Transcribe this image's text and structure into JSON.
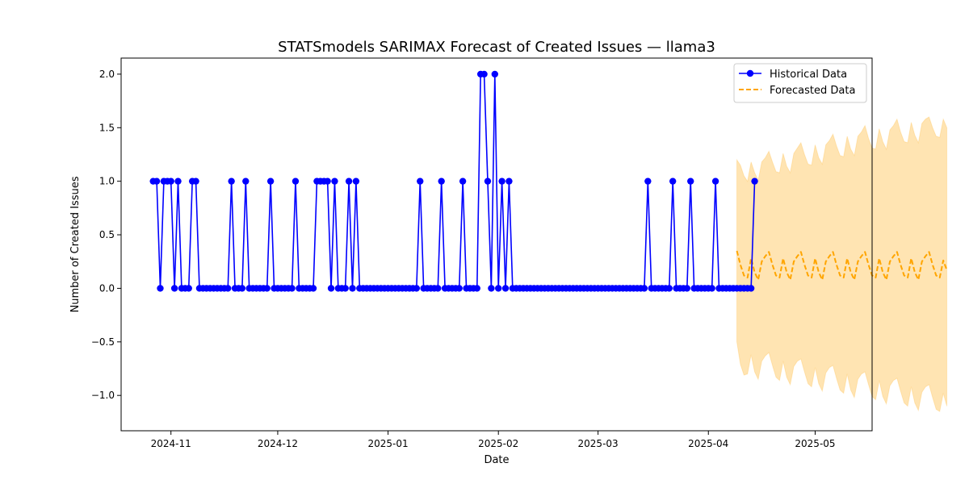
{
  "chart_data": {
    "type": "line",
    "title": "STATSmodels SARIMAX Forecast of Created Issues — llama3",
    "xlabel": "Date",
    "ylabel": "Number of Created Issues",
    "xlim": [
      "2024-10-18",
      "2025-05-17"
    ],
    "ylim": [
      -1.33,
      2.15
    ],
    "yticks": [
      -1.0,
      -0.5,
      0.0,
      0.5,
      1.0,
      1.5,
      2.0
    ],
    "ytick_labels": [
      "−1.0",
      "−0.5",
      "0.0",
      "0.5",
      "1.0",
      "1.5",
      "2.0"
    ],
    "xticks": [
      "2024-11-01",
      "2024-12-01",
      "2025-01-01",
      "2025-02-01",
      "2025-03-01",
      "2025-04-01",
      "2025-05-01"
    ],
    "xtick_labels": [
      "2024-11",
      "2024-12",
      "2025-01",
      "2025-02",
      "2025-03",
      "2025-04",
      "2025-05"
    ],
    "grid": false,
    "legend_position": "top-right",
    "series": [
      {
        "name": "Historical Data",
        "style": "line-with-markers",
        "color": "#0000ff",
        "start_date": "2024-10-27",
        "values": [
          1,
          1,
          0,
          1,
          1,
          1,
          0,
          1,
          0,
          0,
          0,
          1,
          1,
          0,
          0,
          0,
          0,
          0,
          0,
          0,
          0,
          0,
          1,
          0,
          0,
          0,
          1,
          0,
          0,
          0,
          0,
          0,
          0,
          1,
          0,
          0,
          0,
          0,
          0,
          0,
          1,
          0,
          0,
          0,
          0,
          0,
          1,
          1,
          1,
          1,
          0,
          1,
          0,
          0,
          0,
          1,
          0,
          1,
          0,
          0,
          0,
          0,
          0,
          0,
          0,
          0,
          0,
          0,
          0,
          0,
          0,
          0,
          0,
          0,
          0,
          1,
          0,
          0,
          0,
          0,
          0,
          1,
          0,
          0,
          0,
          0,
          0,
          1,
          0,
          0,
          0,
          0,
          2,
          2,
          1,
          0,
          2,
          0,
          1,
          0,
          1,
          0,
          0,
          0,
          0,
          0,
          0,
          0,
          0,
          0,
          0,
          0,
          0,
          0,
          0,
          0,
          0,
          0,
          0,
          0,
          0,
          0,
          0,
          0,
          0,
          0,
          0,
          0,
          0,
          0,
          0,
          0,
          0,
          0,
          0,
          0,
          0,
          0,
          0,
          1,
          0,
          0,
          0,
          0,
          0,
          0,
          1,
          0,
          0,
          0,
          0,
          1,
          0,
          0,
          0,
          0,
          0,
          0,
          1,
          0,
          0,
          0,
          0,
          0,
          0,
          0,
          0,
          0,
          0,
          1
        ]
      },
      {
        "name": "Forecasted Data",
        "style": "dashed",
        "color": "#ffa500",
        "start_date": "2025-04-09",
        "values": [
          0.35,
          0.22,
          0.12,
          0.1,
          0.28,
          0.15,
          0.08,
          0.25,
          0.3,
          0.34,
          0.22,
          0.12,
          0.1,
          0.28,
          0.15,
          0.08,
          0.25,
          0.3,
          0.34,
          0.22,
          0.12,
          0.1,
          0.28,
          0.15,
          0.08,
          0.25,
          0.3,
          0.34,
          0.22,
          0.12,
          0.1,
          0.28,
          0.15,
          0.08,
          0.25,
          0.3,
          0.34,
          0.22,
          0.12,
          0.1,
          0.28,
          0.15,
          0.08,
          0.25,
          0.3,
          0.34,
          0.22,
          0.12,
          0.1,
          0.28,
          0.15,
          0.08,
          0.25,
          0.3,
          0.34,
          0.22,
          0.12,
          0.1,
          0.26,
          0.17
        ]
      }
    ],
    "confidence_band": {
      "color": "#ffa500",
      "opacity": 0.3,
      "start_date": "2025-04-09",
      "upper": [
        1.2,
        1.15,
        1.05,
        1.0,
        1.18,
        1.08,
        1.01,
        1.18,
        1.22,
        1.28,
        1.18,
        1.09,
        1.08,
        1.26,
        1.14,
        1.08,
        1.26,
        1.31,
        1.36,
        1.25,
        1.16,
        1.15,
        1.34,
        1.22,
        1.16,
        1.34,
        1.38,
        1.44,
        1.33,
        1.24,
        1.23,
        1.42,
        1.3,
        1.24,
        1.42,
        1.46,
        1.52,
        1.4,
        1.31,
        1.3,
        1.49,
        1.37,
        1.3,
        1.48,
        1.52,
        1.58,
        1.46,
        1.37,
        1.36,
        1.55,
        1.43,
        1.36,
        1.54,
        1.58,
        1.6,
        1.5,
        1.42,
        1.41,
        1.58,
        1.5
      ],
      "lower": [
        -0.5,
        -0.71,
        -0.81,
        -0.8,
        -0.62,
        -0.78,
        -0.85,
        -0.68,
        -0.63,
        -0.6,
        -0.72,
        -0.83,
        -0.86,
        -0.68,
        -0.83,
        -0.9,
        -0.73,
        -0.68,
        -0.66,
        -0.78,
        -0.89,
        -0.92,
        -0.74,
        -0.89,
        -0.96,
        -0.79,
        -0.74,
        -0.72,
        -0.84,
        -0.95,
        -0.98,
        -0.8,
        -0.95,
        -1.02,
        -0.85,
        -0.8,
        -0.78,
        -0.9,
        -1.01,
        -1.04,
        -0.86,
        -1.01,
        -1.08,
        -0.91,
        -0.86,
        -0.84,
        -0.96,
        -1.07,
        -1.1,
        -0.92,
        -1.07,
        -1.14,
        -0.97,
        -0.92,
        -0.9,
        -1.02,
        -1.13,
        -1.15,
        -0.98,
        -1.1
      ]
    }
  }
}
